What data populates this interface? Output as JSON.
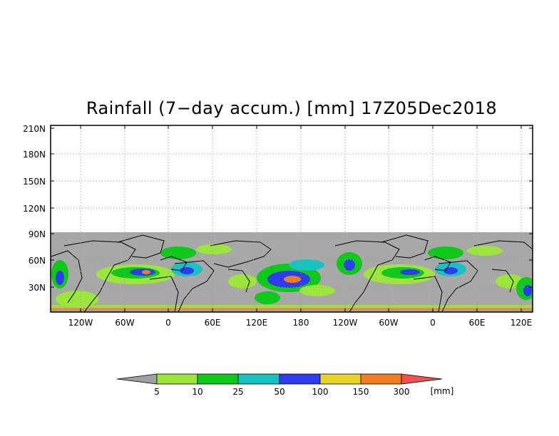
{
  "title": "Rainfall (7−day accum.) [mm] 17Z05Dec2018",
  "map": {
    "lat_ticks": [
      "30N",
      "60N",
      "90N",
      "120N",
      "150N",
      "180N",
      "210N"
    ],
    "lon_ticks": [
      "120W",
      "60W",
      "0",
      "60E",
      "120E",
      "180",
      "120W",
      "60W",
      "0",
      "60E",
      "120E"
    ],
    "grid": "dotted",
    "colors": {
      "no_data": "#a8a8a8",
      "land_outline": "#000000"
    }
  },
  "legend": {
    "unit": "[mm]",
    "labels": [
      "5",
      "10",
      "25",
      "50",
      "100",
      "150",
      "300"
    ],
    "colors": [
      "#a0a0a0",
      "#9be53c",
      "#0ec81a",
      "#19c2c2",
      "#2e3cf0",
      "#e6d428",
      "#f07d23",
      "#f05050"
    ]
  }
}
